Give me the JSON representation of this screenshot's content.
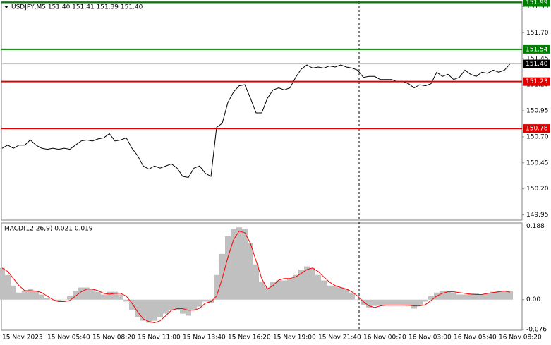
{
  "chart_data": [
    {
      "type": "line",
      "title": "USDJPY,M5  151.40 151.41 151.39 151.40",
      "color": "#000000",
      "categories": [
        "15 Nov 2023",
        null,
        null,
        null,
        null,
        null,
        null,
        null,
        "15 Nov 05:40",
        null,
        null,
        null,
        null,
        null,
        null,
        null,
        "15 Nov 08:20",
        null,
        null,
        null,
        null,
        null,
        null,
        null,
        "15 Nov 11:00",
        null,
        null,
        null,
        null,
        null,
        null,
        null,
        "15 Nov 13:40",
        null,
        null,
        null,
        null,
        null,
        null,
        null,
        "15 Nov 16:20",
        null,
        null,
        null,
        null,
        null,
        null,
        null,
        "15 Nov 19:00",
        null,
        null,
        null,
        null,
        null,
        null,
        null,
        "15 Nov 21:40",
        null,
        null,
        null,
        null,
        null,
        null,
        null,
        "16 Nov 00:20",
        null,
        null,
        null,
        null,
        null,
        null,
        null,
        "16 Nov 03:00",
        null,
        null,
        null,
        null,
        null,
        null,
        null,
        "16 Nov 05:40",
        null,
        null,
        null,
        null,
        null,
        null,
        null,
        "16 Nov 08:20",
        null,
        null
      ],
      "values": [
        150.59,
        150.62,
        150.59,
        150.62,
        150.62,
        150.67,
        150.62,
        150.59,
        150.58,
        150.59,
        150.58,
        150.59,
        150.58,
        150.62,
        150.66,
        150.67,
        150.66,
        150.68,
        150.69,
        150.73,
        150.66,
        150.67,
        150.69,
        150.59,
        150.52,
        150.42,
        150.39,
        150.42,
        150.4,
        150.42,
        150.44,
        150.4,
        150.32,
        150.31,
        150.4,
        150.42,
        150.35,
        150.32,
        150.79,
        150.83,
        151.03,
        151.13,
        151.19,
        151.2,
        151.07,
        150.93,
        150.93,
        151.07,
        151.15,
        151.17,
        151.15,
        151.17,
        151.27,
        151.35,
        151.39,
        151.36,
        151.37,
        151.36,
        151.38,
        151.37,
        151.39,
        151.37,
        151.36,
        151.34,
        151.27,
        151.28,
        151.28,
        151.25,
        151.25,
        151.25,
        151.23,
        151.23,
        151.21,
        151.17,
        151.2,
        151.19,
        151.21,
        151.32,
        151.28,
        151.3,
        151.25,
        151.27,
        151.34,
        151.3,
        151.28,
        151.32,
        151.31,
        151.34,
        151.32,
        151.34,
        151.4
      ],
      "ylim": [
        149.9,
        152.0
      ],
      "yticks": [
        151.95,
        {
          "value": 151.7,
          "label": "151.70"
        },
        151.45,
        {
          "value": 151.2,
          "label": "151.20"
        },
        150.95,
        {
          "value": 150.7,
          "label": "150.70"
        },
        150.45,
        {
          "value": 150.2,
          "label": "150.20"
        },
        149.95
      ],
      "levels": [
        {
          "value": 151.99,
          "color": "#008000"
        },
        {
          "value": 151.54,
          "color": "#008000"
        },
        {
          "value": 151.4,
          "label": "151.40",
          "color": "#000000",
          "line_color": "#c0c0c0"
        },
        {
          "value": 151.23,
          "color": "#e00000"
        },
        {
          "value": 150.78,
          "color": "#e00000"
        }
      ]
    },
    {
      "type": "macd",
      "title": "MACD(12,26,9) 0.021 0.019",
      "series": [
        {
          "type": "bar",
          "color": "#c0c0c0",
          "values": [
            0.081,
            0.063,
            0.036,
            0.018,
            0.023,
            0.027,
            0.023,
            0.013,
            0.004,
            0,
            -0.005,
            0,
            0.009,
            0.023,
            0.031,
            0.031,
            0.027,
            0.02,
            0.013,
            0.02,
            0.02,
            0.013,
            -0.005,
            -0.027,
            -0.045,
            -0.054,
            -0.059,
            -0.054,
            -0.045,
            -0.036,
            -0.027,
            -0.027,
            -0.036,
            -0.041,
            -0.027,
            -0.018,
            -0.005,
            -0.009,
            0.063,
            0.117,
            0.162,
            0.18,
            0.185,
            0.18,
            0.144,
            0.09,
            0.045,
            0.031,
            0.045,
            0.049,
            0.049,
            0.054,
            0.063,
            0.077,
            0.085,
            0.081,
            0.063,
            0.049,
            0.036,
            0.036,
            0.031,
            0.027,
            0.018,
            0,
            -0.013,
            -0.02,
            -0.016,
            -0.013,
            -0.014,
            -0.013,
            -0.013,
            -0.014,
            -0.016,
            -0.023,
            -0.013,
            -0.005,
            0.009,
            0.018,
            0.023,
            0.022,
            0.018,
            0.013,
            0.013,
            0.016,
            0.016,
            0.013,
            0.016,
            0.02,
            0.022,
            0.023,
            0.021
          ]
        },
        {
          "type": "line",
          "color": "#ff0000",
          "values": [
            0.081,
            0.072,
            0.054,
            0.036,
            0.023,
            0.023,
            0.022,
            0.018,
            0.009,
            0,
            -0.005,
            -0.005,
            -0.002,
            0.009,
            0.02,
            0.027,
            0.027,
            0.023,
            0.016,
            0.014,
            0.016,
            0.016,
            0.009,
            -0.009,
            -0.031,
            -0.049,
            -0.056,
            -0.059,
            -0.054,
            -0.041,
            -0.027,
            -0.023,
            -0.023,
            -0.027,
            -0.027,
            -0.022,
            -0.009,
            -0.005,
            0.009,
            0.054,
            0.108,
            0.153,
            0.175,
            0.171,
            0.144,
            0.099,
            0.054,
            0.027,
            0.036,
            0.05,
            0.054,
            0.054,
            0.058,
            0.067,
            0.077,
            0.081,
            0.072,
            0.058,
            0.045,
            0.036,
            0.031,
            0.027,
            0.02,
            0.009,
            -0.005,
            -0.016,
            -0.02,
            -0.016,
            -0.014,
            -0.014,
            -0.014,
            -0.014,
            -0.014,
            -0.016,
            -0.016,
            -0.013,
            -0.002,
            0.009,
            0.016,
            0.02,
            0.02,
            0.018,
            0.016,
            0.014,
            0.013,
            0.013,
            0.016,
            0.018,
            0.02,
            0.022,
            0.019
          ]
        }
      ],
      "ylim": [
        -0.078,
        0.196
      ],
      "yticks": [
        0.188,
        {
          "value": 0,
          "label": "0.00"
        },
        -0.076
      ]
    }
  ]
}
